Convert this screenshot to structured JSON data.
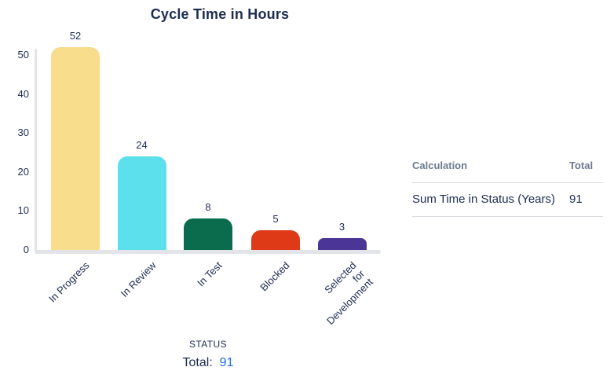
{
  "title": "Cycle Time in Hours",
  "chart_data": {
    "type": "bar",
    "title": "Cycle Time in Hours",
    "categories": [
      "In Progress",
      "In Review",
      "In Test",
      "Blocked",
      "Selected for Development"
    ],
    "category_label_lines": [
      [
        "In Progress"
      ],
      [
        "In Review"
      ],
      [
        "In Test"
      ],
      [
        "Blocked"
      ],
      [
        "Selected",
        "for",
        "Development"
      ]
    ],
    "values": [
      52,
      24,
      8,
      5,
      3
    ],
    "bar_colors": [
      "#F8DD8C",
      "#5CE0EB",
      "#0A6C4D",
      "#DE3A18",
      "#4B3596"
    ],
    "xlabel": "STATUS",
    "ylabel": "",
    "ylim": [
      0,
      52
    ],
    "yticks": [
      0,
      10,
      20,
      30,
      40,
      50
    ],
    "grid": false,
    "value_labels_shown": true,
    "legend": "none"
  },
  "footer": {
    "xlabel": "STATUS",
    "total_label": "Total:",
    "total_value": "91"
  },
  "table": {
    "headers": [
      "Calculation",
      "Total"
    ],
    "rows": [
      {
        "calculation": "Sum Time in Status (Years)",
        "total": "91"
      }
    ]
  },
  "colors": {
    "text_navy": "#1C2B50",
    "axis_gray": "#E2E4E9",
    "table_header_gray": "#6C7A8F",
    "divider_gray": "#D9DCE1",
    "total_blue": "#2069E8"
  }
}
